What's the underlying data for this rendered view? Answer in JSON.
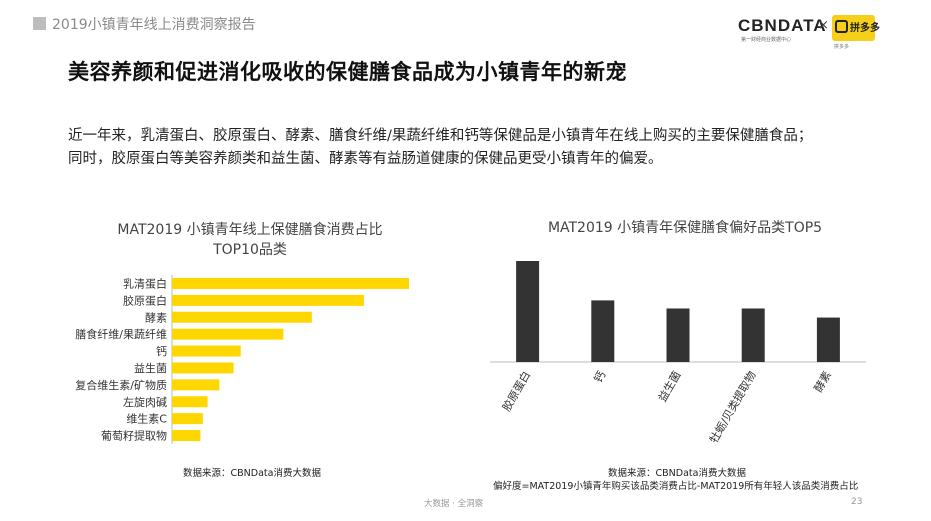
{
  "header": {
    "report_title": "2019小镇青年线上消费洞察报告"
  },
  "logos": {
    "cbndata": "CBNDATA",
    "cbndata_sub": "第一财经商业数据中心",
    "times": "×",
    "partner_name": "拼多多",
    "partner_sub": "拼多多"
  },
  "page_title": "美容养颜和促进消化吸收的保健膳食品成为小镇青年的新宠",
  "description": {
    "line1": "近一年来，乳清蛋白、胶原蛋白、酵素、膳食纤维/果蔬纤维和钙等保健品是小镇青年在线上购买的主要保健膳食品；",
    "line2": "同时，胶原蛋白等美容养颜类和益生菌、酵素等有益肠道健康的保健品更受小镇青年的偏爱。"
  },
  "chart_data": [
    {
      "type": "bar",
      "orientation": "horizontal",
      "title": "MAT2019 小镇青年线上保健膳食消费占比",
      "subtitle": "TOP10品类",
      "categories": [
        "乳清蛋白",
        "胶原蛋白",
        "酵素",
        "膳食纤维/果蔬纤维",
        "钙",
        "益生菌",
        "复合维生素/矿物质",
        "左旋肉碱",
        "维生素C",
        "葡萄籽提取物"
      ],
      "values": [
        100,
        81,
        59,
        47,
        29,
        26,
        20,
        15,
        13,
        12
      ],
      "value_unit": "relative share (no axis shown)",
      "color": "#FFD700",
      "source": "数据来源：CBNData消费大数据"
    },
    {
      "type": "bar",
      "orientation": "vertical",
      "title": "MAT2019 小镇青年保健膳食偏好品类TOP5",
      "categories": [
        "胶原蛋白",
        "钙",
        "益生菌",
        "牡蛎/贝类提取物",
        "酵素"
      ],
      "values": [
        100,
        61,
        53,
        53,
        44
      ],
      "value_unit": "relative preference index (no axis shown)",
      "color": "#333333",
      "source": "数据来源：CBNData消费大数据",
      "note": "偏好度=MAT2019小镇青年购买该品类消费占比-MAT2019所有年轻人该品类消费占比"
    }
  ],
  "footer": {
    "text": "大数据 · 全洞察",
    "page_number": "23"
  }
}
